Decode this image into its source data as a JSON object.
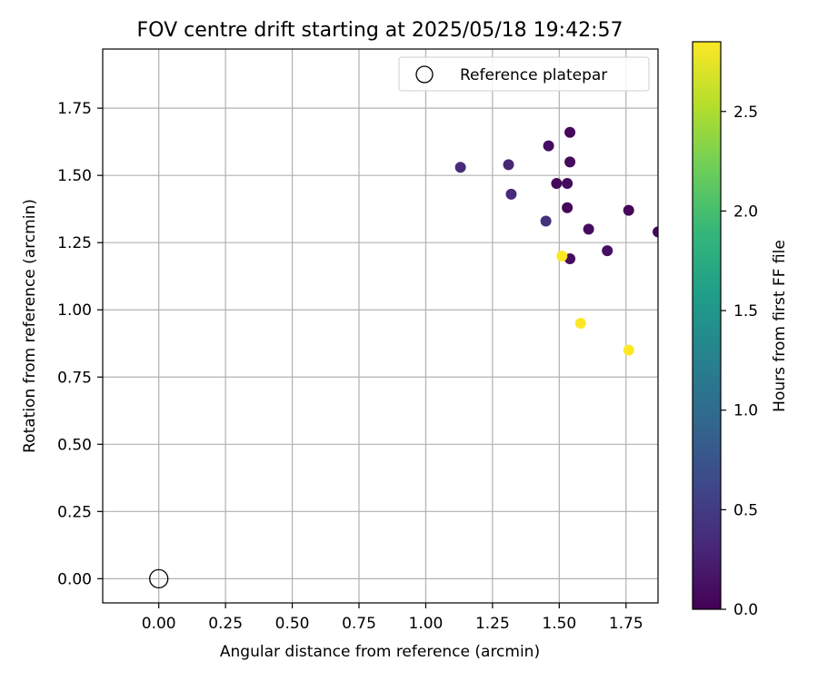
{
  "chart_data": {
    "type": "scatter",
    "title": "FOV centre drift starting at 2025/05/18 19:42:57",
    "xlabel": "Angular distance from reference (arcmin)",
    "ylabel": "Rotation from reference (arcmin)",
    "xlim": [
      -0.21,
      1.87
    ],
    "ylim": [
      -0.09,
      1.97
    ],
    "xticks": [
      "0.00",
      "0.25",
      "0.50",
      "0.75",
      "1.00",
      "1.25",
      "1.50",
      "1.75"
    ],
    "yticks": [
      "0.00",
      "0.25",
      "0.50",
      "0.75",
      "1.00",
      "1.25",
      "1.50",
      "1.75"
    ],
    "grid": true,
    "legend": {
      "placement": "top-right",
      "entries": [
        "Reference platepar"
      ]
    },
    "reference_point": {
      "name": "Reference platepar",
      "x": 0.0,
      "y": 0.0
    },
    "colorbar": {
      "label": "Hours from first FF file",
      "colormap": "viridis",
      "range": [
        0.0,
        2.85
      ],
      "ticks": [
        "0.0",
        "0.5",
        "1.0",
        "1.5",
        "2.0",
        "2.5"
      ],
      "colors": [
        "#440154",
        "#482878",
        "#3e4989",
        "#31688e",
        "#26828e",
        "#1f9e89",
        "#35b779",
        "#6ece58",
        "#b5de2b",
        "#fde725"
      ]
    },
    "series": [
      {
        "points": [
          {
            "x": 1.13,
            "y": 1.53,
            "h": 0.35
          },
          {
            "x": 1.31,
            "y": 1.54,
            "h": 0.3
          },
          {
            "x": 1.32,
            "y": 1.43,
            "h": 0.35
          },
          {
            "x": 1.45,
            "y": 1.33,
            "h": 0.4
          },
          {
            "x": 1.46,
            "y": 1.61,
            "h": 0.1
          },
          {
            "x": 1.49,
            "y": 1.47,
            "h": 0.05
          },
          {
            "x": 1.53,
            "y": 1.47,
            "h": 0.08
          },
          {
            "x": 1.53,
            "y": 1.38,
            "h": 0.05
          },
          {
            "x": 1.54,
            "y": 1.66,
            "h": 0.05
          },
          {
            "x": 1.54,
            "y": 1.55,
            "h": 0.08
          },
          {
            "x": 1.54,
            "y": 1.19,
            "h": 0.1
          },
          {
            "x": 1.61,
            "y": 1.3,
            "h": 0.1
          },
          {
            "x": 1.68,
            "y": 1.22,
            "h": 0.12
          },
          {
            "x": 1.76,
            "y": 1.37,
            "h": 0.05
          },
          {
            "x": 1.87,
            "y": 1.29,
            "h": 0.05
          },
          {
            "x": 1.51,
            "y": 1.2,
            "h": 2.85
          },
          {
            "x": 1.58,
            "y": 0.95,
            "h": 2.85
          },
          {
            "x": 1.76,
            "y": 0.85,
            "h": 2.85
          }
        ]
      }
    ]
  }
}
